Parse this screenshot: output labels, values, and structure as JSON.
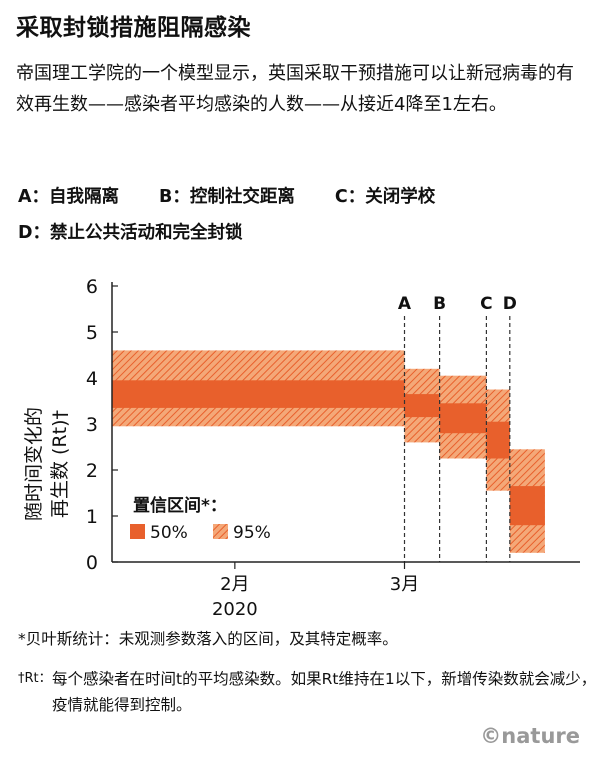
{
  "title": "采取封锁措施阻隔感染",
  "subtitle": "帝国理工学院的一个模型显示，英国采取干预措施可以让新冠病毒的有效再生数——感染者平均感染的人数——从接近4降至1左右。",
  "legend_codes": {
    "line1": [
      "A：自我隔离",
      "B：控制社交距离",
      "C：关闭学校"
    ],
    "line2": [
      "D：禁止公共活动和完全封锁"
    ]
  },
  "footnotes": {
    "bayes": "*贝叶斯统计：未观测参数落入的区间，及其特定概率。",
    "rt_mark": "†Rt：",
    "rt_text": "每个感染者在时间t的平均感染数。如果Rt维持在1以下，新增传染数就会减少，疫情就能得到控制。"
  },
  "logo": "©nature",
  "colors": {
    "band50": "#e8602c",
    "band95": "#f4a878",
    "hatch": "#e8602c",
    "grid": "#d0d0d0",
    "axis": "#222222"
  },
  "chart_data": {
    "type": "area",
    "ylabel_line1": "随时间变化的",
    "ylabel_line2": "再生数 (Rt)†",
    "yticks": [
      0,
      1,
      2,
      3,
      4,
      5,
      6
    ],
    "ylim": [
      0,
      6
    ],
    "xticks": [
      {
        "label": "2月",
        "sub": "2020",
        "date": "2020-02-01"
      },
      {
        "label": "3月",
        "sub": "",
        "date": "2020-03-01"
      }
    ],
    "xlim": [
      "2020-01-11",
      "2020-03-31"
    ],
    "grid": false,
    "interventions": [
      {
        "code": "A",
        "date": "2020-03-01"
      },
      {
        "code": "B",
        "date": "2020-03-07"
      },
      {
        "code": "C",
        "date": "2020-03-15"
      },
      {
        "code": "D",
        "date": "2020-03-19"
      }
    ],
    "segments": [
      {
        "start": "2020-01-11",
        "end": "2020-03-01",
        "ci95": [
          2.95,
          4.6
        ],
        "ci50": [
          3.35,
          3.95
        ]
      },
      {
        "start": "2020-03-01",
        "end": "2020-03-07",
        "ci95": [
          2.6,
          4.2
        ],
        "ci50": [
          3.15,
          3.65
        ]
      },
      {
        "start": "2020-03-07",
        "end": "2020-03-15",
        "ci95": [
          2.25,
          4.05
        ],
        "ci50": [
          2.8,
          3.45
        ]
      },
      {
        "start": "2020-03-15",
        "end": "2020-03-19",
        "ci95": [
          1.55,
          3.75
        ],
        "ci50": [
          2.25,
          3.05
        ]
      },
      {
        "start": "2020-03-19",
        "end": "2020-03-25",
        "ci95": [
          0.2,
          2.45
        ],
        "ci50": [
          0.8,
          1.65
        ]
      }
    ],
    "legend": {
      "title": "置信区间*：",
      "items": [
        {
          "label": "50%",
          "style": "solid"
        },
        {
          "label": "95%",
          "style": "hatched"
        }
      ],
      "placement": "bottom-left"
    }
  }
}
